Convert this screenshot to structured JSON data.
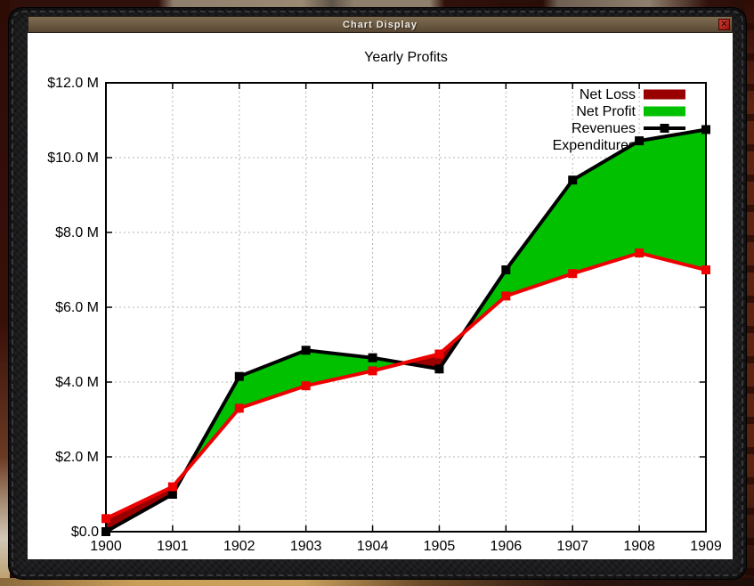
{
  "window": {
    "title": "Chart Display",
    "close_icon": "✕"
  },
  "chart_data": {
    "type": "line",
    "title": "Yearly Profits",
    "x": [
      1900,
      1901,
      1902,
      1903,
      1904,
      1905,
      1906,
      1907,
      1908,
      1909
    ],
    "x_tick_labels": [
      "1900",
      "1901",
      "1902",
      "1903",
      "1904",
      "1905",
      "1906",
      "1907",
      "1908",
      "1909"
    ],
    "series": [
      {
        "name": "Revenues",
        "color": "#000000",
        "values": [
          0.0,
          1.0,
          4.15,
          4.85,
          4.65,
          4.35,
          7.0,
          9.4,
          10.45,
          10.75
        ]
      },
      {
        "name": "Expenditures",
        "color": "#ee0000",
        "values": [
          0.35,
          1.2,
          3.3,
          3.9,
          4.3,
          4.75,
          6.3,
          6.9,
          7.45,
          7.0
        ]
      }
    ],
    "fills": [
      {
        "name": "Net Loss",
        "rule": "loss",
        "color": "#990000"
      },
      {
        "name": "Net Profit",
        "rule": "profit",
        "color": "#00c000"
      }
    ],
    "legend": [
      {
        "label": "Net Loss",
        "swatch": "box",
        "color": "#990000"
      },
      {
        "label": "Net Profit",
        "swatch": "box",
        "color": "#00c000"
      },
      {
        "label": "Revenues",
        "swatch": "line-marker",
        "color": "#000000"
      },
      {
        "label": "Expenditures",
        "swatch": "line-marker",
        "color": "#ee0000"
      }
    ],
    "legend_position": "top-right",
    "grid": true,
    "ylim": [
      0,
      12
    ],
    "y_tick_values": [
      0,
      2,
      4,
      6,
      8,
      10,
      12
    ],
    "y_tick_labels": [
      "$0.0",
      "$2.0 M",
      "$4.0 M",
      "$6.0 M",
      "$8.0 M",
      "$10.0 M",
      "$12.0 M"
    ],
    "grid_color": "#b4b4b4",
    "axis_color": "#000000"
  }
}
